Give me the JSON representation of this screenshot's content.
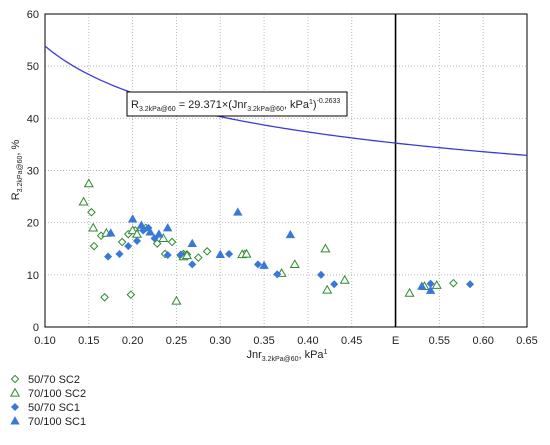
{
  "chart_data": {
    "type": "scatter",
    "xlabel": {
      "main": "Jnr",
      "sub": "3.2kPa@60",
      "rest": ", kPa",
      "sup": "1"
    },
    "ylabel": {
      "main": "R",
      "sub": "3.2kPa@60",
      "rest": ", %"
    },
    "xlim": [
      0.1,
      0.65
    ],
    "ylim": [
      0,
      60
    ],
    "x_ticks": [
      "0.10",
      "0.15",
      "0.20",
      "0.25",
      "0.30",
      "0.35",
      "0.40",
      "0.45",
      "E",
      "0.55",
      "0.60",
      "0.65"
    ],
    "x_tick_values": [
      0.1,
      0.15,
      0.2,
      0.25,
      0.3,
      0.35,
      0.4,
      0.45,
      0.5,
      0.55,
      0.6,
      0.65
    ],
    "y_ticks": [
      "0",
      "10",
      "20",
      "30",
      "40",
      "50",
      "60"
    ],
    "y_tick_values": [
      0,
      10,
      20,
      30,
      40,
      50,
      60
    ],
    "grid": "dotted",
    "vertical_marker": 0.5,
    "curve": {
      "a": 29.371,
      "b": -0.2633,
      "color": "#3b3bd6",
      "equation": {
        "lhs": "R",
        "lhs_sub": "3.2kPa@60",
        "mid": " = 29.371×(Jnr",
        "mid_sub": "3.2kPa@60",
        "tail": ", kPa",
        "tail_sup": "1",
        "close": ")",
        "exp": "-0.2633"
      }
    },
    "legend_position": "bottom-left",
    "series": [
      {
        "name": "50/70 SC2",
        "marker": "diamond-open",
        "color": "#2e8b2e",
        "x": [
          0.153,
          0.156,
          0.164,
          0.168,
          0.188,
          0.195,
          0.198,
          0.203,
          0.215,
          0.228,
          0.237,
          0.245,
          0.255,
          0.258,
          0.262,
          0.275,
          0.285,
          0.328,
          0.566
        ],
        "y": [
          22.0,
          15.5,
          17.5,
          5.7,
          16.3,
          17.8,
          6.2,
          18.5,
          19.0,
          16.0,
          14.0,
          16.3,
          13.7,
          14.0,
          13.9,
          13.3,
          14.5,
          14.0,
          8.4
        ]
      },
      {
        "name": "70/100 SC2",
        "marker": "triangle-open",
        "color": "#2e8b2e",
        "x": [
          0.144,
          0.15,
          0.155,
          0.17,
          0.2,
          0.205,
          0.235,
          0.25,
          0.258,
          0.262,
          0.325,
          0.33,
          0.37,
          0.385,
          0.42,
          0.422,
          0.442,
          0.516,
          0.533,
          0.547
        ],
        "y": [
          24.0,
          27.5,
          19.0,
          18.0,
          18.5,
          17.8,
          17.0,
          5.0,
          13.5,
          13.7,
          13.9,
          14.0,
          10.3,
          12.0,
          15.0,
          7.1,
          9.0,
          6.5,
          7.8,
          8.0
        ]
      },
      {
        "name": "50/70 SC1",
        "marker": "diamond-filled",
        "color": "#3a78d8",
        "x": [
          0.172,
          0.185,
          0.195,
          0.205,
          0.212,
          0.218,
          0.225,
          0.24,
          0.255,
          0.268,
          0.31,
          0.343,
          0.365,
          0.415,
          0.43,
          0.54,
          0.585
        ],
        "y": [
          13.5,
          14.0,
          15.5,
          16.5,
          18.5,
          19.0,
          17.0,
          13.8,
          13.9,
          12.0,
          14.0,
          12.0,
          10.1,
          10.0,
          8.2,
          8.3,
          8.2
        ]
      },
      {
        "name": "70/100 SC1",
        "marker": "triangle-filled",
        "color": "#3a78d8",
        "x": [
          0.175,
          0.2,
          0.21,
          0.22,
          0.23,
          0.24,
          0.268,
          0.3,
          0.32,
          0.35,
          0.38,
          0.53,
          0.54
        ],
        "y": [
          18.0,
          20.7,
          19.5,
          18.2,
          17.8,
          19.0,
          16.0,
          13.9,
          22.0,
          11.8,
          17.7,
          7.8,
          7.0
        ]
      }
    ]
  }
}
